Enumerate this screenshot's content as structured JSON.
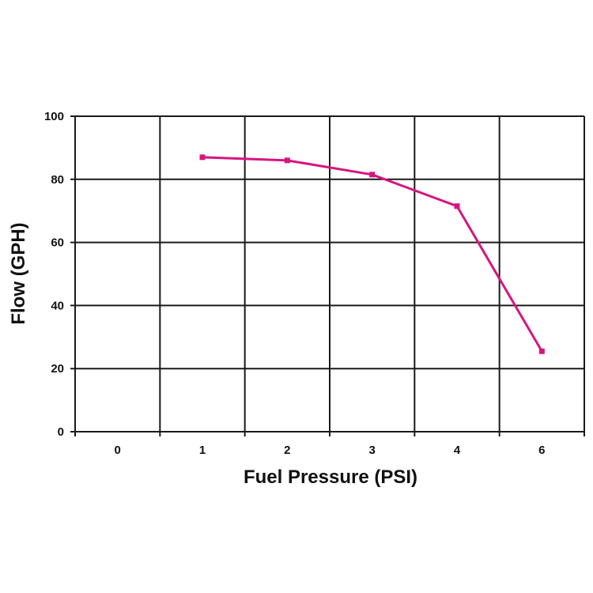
{
  "chart_data": {
    "type": "line",
    "title": "",
    "xlabel": "Fuel Pressure (PSI)",
    "ylabel": "Flow (GPH)",
    "categories": [
      "0",
      "1",
      "2",
      "3",
      "4",
      "6"
    ],
    "ylim": [
      0,
      100
    ],
    "y_ticks": [
      "0",
      "20",
      "40",
      "60",
      "80",
      "100"
    ],
    "grid": true,
    "legend": "none",
    "series": [
      {
        "x": [
          "1",
          "2",
          "3",
          "4",
          "6"
        ],
        "values": [
          87,
          86,
          81.5,
          71.5,
          25.5
        ],
        "color": "#d6157f"
      }
    ]
  }
}
